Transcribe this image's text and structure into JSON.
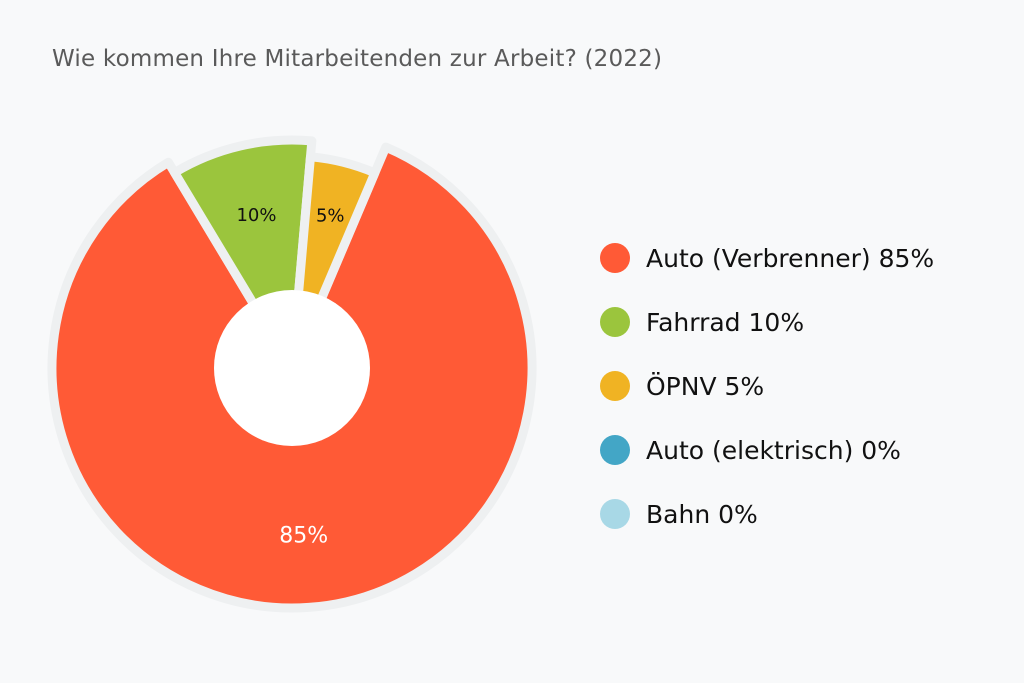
{
  "chart_data": {
    "type": "pie",
    "variant": "donut",
    "title": "Wie kommen Ihre Mitarbeitenden zur Arbeit? (2022)",
    "legend_position": "right",
    "slices": [
      {
        "label": "Auto (Verbrenner)",
        "value": 85,
        "data_label": "85%",
        "legend_text": "Auto (Verbrenner) 85%",
        "color": "#ff5a36"
      },
      {
        "label": "Fahrrad",
        "value": 10,
        "data_label": "10%",
        "legend_text": "Fahrrad 10%",
        "color": "#9bc53d"
      },
      {
        "label": "ÖPNV",
        "value": 5,
        "data_label": "5%",
        "legend_text": "ÖPNV 5%",
        "color": "#f0b323"
      },
      {
        "label": "Auto (elektrisch)",
        "value": 0,
        "data_label": "0%",
        "legend_text": "Auto (elektrisch) 0%",
        "color": "#43a6c6"
      },
      {
        "label": "Bahn",
        "value": 0,
        "data_label": "0%",
        "legend_text": "Bahn 0%",
        "color": "#a8d8e6"
      }
    ]
  }
}
